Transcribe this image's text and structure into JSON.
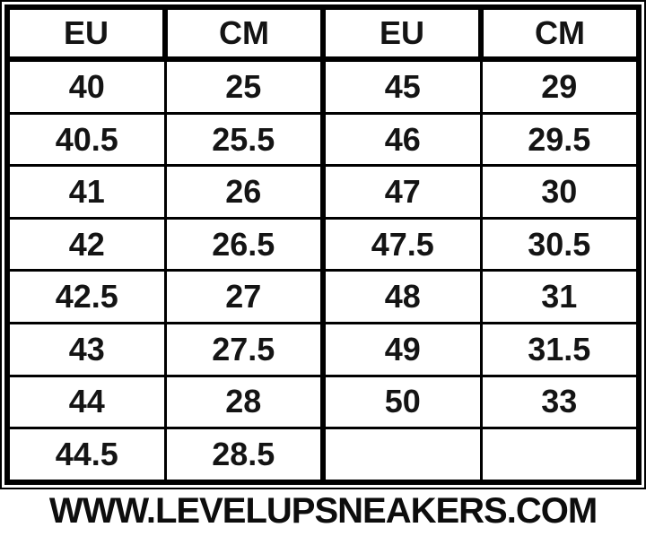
{
  "chart_data": {
    "type": "table",
    "columns": [
      "EU",
      "CM",
      "EU",
      "CM"
    ],
    "rows": [
      [
        "40",
        "25",
        "45",
        "29"
      ],
      [
        "40.5",
        "25.5",
        "46",
        "29.5"
      ],
      [
        "41",
        "26",
        "47",
        "30"
      ],
      [
        "42",
        "26.5",
        "47.5",
        "30.5"
      ],
      [
        "42.5",
        "27",
        "48",
        "31"
      ],
      [
        "43",
        "27.5",
        "49",
        "31.5"
      ],
      [
        "44",
        "28",
        "50",
        "33"
      ],
      [
        "44.5",
        "28.5",
        "",
        ""
      ]
    ]
  },
  "footer": {
    "website": "WWW.LEVELUPSNEAKERS.COM"
  },
  "colors": {
    "border": "#000000",
    "text": "#141414",
    "background": "#ffffff"
  }
}
